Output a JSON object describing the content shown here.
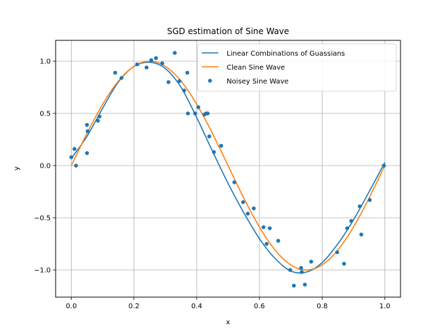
{
  "chart_data": {
    "type": "line",
    "title": "SGD estimation of Sine Wave",
    "xlabel": "x",
    "ylabel": "y",
    "xlim": [
      -0.05,
      1.05
    ],
    "ylim": [
      -1.26,
      1.2
    ],
    "xticks": [
      0.0,
      0.2,
      0.4,
      0.6,
      0.8,
      1.0
    ],
    "xtick_labels": [
      "0.0",
      "0.2",
      "0.4",
      "0.6",
      "0.8",
      "1.0"
    ],
    "yticks": [
      -1.0,
      -0.5,
      0.0,
      0.5,
      1.0
    ],
    "ytick_labels": [
      "−1.0",
      "−0.5",
      "0.0",
      "0.5",
      "1.0"
    ],
    "grid": true,
    "legend_position": "top-right",
    "colors": {
      "blue": "#1f77b4",
      "orange": "#ff7f0e",
      "grid": "#b0b0b0"
    },
    "series": [
      {
        "name": "Linear Combinations of Guassians",
        "kind": "line",
        "color": "#1f77b4",
        "x": [
          0.0,
          0.05,
          0.1,
          0.15,
          0.2,
          0.25,
          0.3,
          0.35,
          0.4,
          0.45,
          0.5,
          0.55,
          0.6,
          0.65,
          0.7,
          0.75,
          0.8,
          0.85,
          0.9,
          0.95,
          1.0
        ],
        "y": [
          0.07,
          0.28,
          0.55,
          0.8,
          0.95,
          0.99,
          0.93,
          0.75,
          0.46,
          0.14,
          -0.17,
          -0.45,
          -0.7,
          -0.89,
          -1.01,
          -1.02,
          -0.93,
          -0.75,
          -0.52,
          -0.25,
          0.03
        ]
      },
      {
        "name": "Clean Sine Wave",
        "kind": "line",
        "color": "#ff7f0e",
        "function": "sin(2*pi*x)",
        "x_range": [
          0.0,
          1.0
        ]
      },
      {
        "name": "Noisey Sine Wave",
        "kind": "scatter",
        "color": "#1f77b4",
        "x": [
          0.0,
          0.01,
          0.015,
          0.05,
          0.05,
          0.052,
          0.085,
          0.09,
          0.14,
          0.16,
          0.21,
          0.24,
          0.255,
          0.27,
          0.29,
          0.31,
          0.33,
          0.345,
          0.36,
          0.37,
          0.372,
          0.395,
          0.405,
          0.425,
          0.43,
          0.435,
          0.44,
          0.455,
          0.478,
          0.52,
          0.548,
          0.563,
          0.582,
          0.613,
          0.623,
          0.633,
          0.66,
          0.698,
          0.71,
          0.733,
          0.735,
          0.745,
          0.765,
          0.848,
          0.87,
          0.88,
          0.893,
          0.92,
          0.925,
          0.952,
          0.997
        ],
        "y": [
          0.08,
          0.16,
          0.0,
          0.39,
          0.12,
          0.33,
          0.43,
          0.47,
          0.89,
          0.84,
          0.97,
          0.94,
          1.01,
          1.03,
          0.98,
          0.8,
          1.08,
          0.81,
          0.72,
          0.89,
          0.5,
          0.5,
          0.56,
          0.49,
          0.5,
          0.5,
          0.28,
          0.13,
          0.19,
          -0.16,
          -0.35,
          -0.46,
          -0.41,
          -0.59,
          -0.75,
          -0.6,
          -0.72,
          -1.0,
          -1.15,
          -0.98,
          -1.02,
          -1.14,
          -0.92,
          -0.83,
          -0.94,
          -0.6,
          -0.53,
          -0.39,
          -0.66,
          -0.33,
          0.0
        ]
      }
    ]
  }
}
